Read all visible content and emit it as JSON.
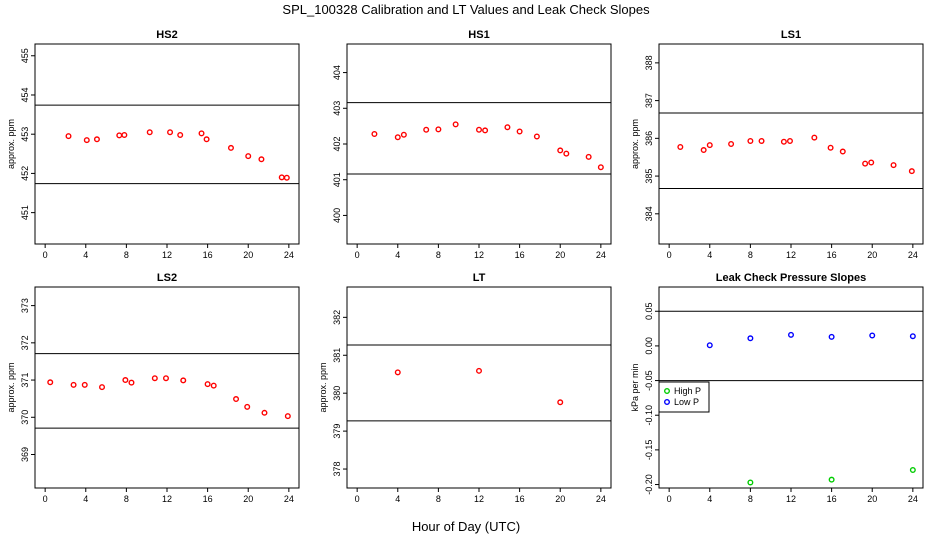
{
  "figure": {
    "title": "SPL_100328  Calibration and LT Values and Leak Check Slopes",
    "xlabel": "Hour of Day (UTC)"
  },
  "chart_data": [
    {
      "type": "scatter",
      "title": "HS2",
      "ylabel": "approx. ppm",
      "xlim": [
        -1,
        25
      ],
      "ylim": [
        450.2,
        455.3
      ],
      "xticks": [
        "0",
        "4",
        "8",
        "12",
        "16",
        "20",
        "24"
      ],
      "yticks": [
        "451",
        "452",
        "453",
        "454",
        "455"
      ],
      "hlines": [
        451.74,
        453.74
      ],
      "series": [
        {
          "color": "#ff0000",
          "x": [
            2.3,
            4.1,
            5.1,
            7.3,
            7.8,
            10.3,
            12.3,
            13.3,
            15.4,
            15.9,
            18.3,
            20.0,
            21.3,
            23.3,
            23.8
          ],
          "y": [
            452.95,
            452.85,
            452.87,
            452.97,
            452.98,
            453.05,
            453.05,
            452.98,
            453.02,
            452.87,
            452.65,
            452.44,
            452.36,
            451.9,
            451.89
          ]
        }
      ]
    },
    {
      "type": "scatter",
      "title": "HS1",
      "ylabel": "",
      "xlim": [
        -1,
        25
      ],
      "ylim": [
        399.2,
        404.8
      ],
      "xticks": [
        "0",
        "4",
        "8",
        "12",
        "16",
        "20",
        "24"
      ],
      "yticks": [
        "400",
        "401",
        "402",
        "403",
        "404"
      ],
      "hlines": [
        401.16,
        403.16
      ],
      "series": [
        {
          "color": "#ff0000",
          "x": [
            1.7,
            4.0,
            4.6,
            6.8,
            8.0,
            9.7,
            12.0,
            12.6,
            14.8,
            16.0,
            17.7,
            20.0,
            20.6,
            22.8,
            24.0
          ],
          "y": [
            402.28,
            402.19,
            402.26,
            402.4,
            402.41,
            402.55,
            402.4,
            402.38,
            402.47,
            402.35,
            402.21,
            401.82,
            401.73,
            401.64,
            401.35
          ]
        }
      ]
    },
    {
      "type": "scatter",
      "title": "LS1",
      "ylabel": "approx. ppm",
      "xlim": [
        -1,
        25
      ],
      "ylim": [
        383.2,
        388.5
      ],
      "xticks": [
        "0",
        "4",
        "8",
        "12",
        "16",
        "20",
        "24"
      ],
      "yticks": [
        "384",
        "385",
        "386",
        "387",
        "388"
      ],
      "hlines": [
        384.67,
        386.67
      ],
      "series": [
        {
          "color": "#ff0000",
          "x": [
            1.1,
            3.4,
            4.0,
            6.1,
            8.0,
            9.1,
            11.3,
            11.9,
            14.3,
            15.9,
            17.1,
            19.3,
            19.9,
            22.1,
            23.9
          ],
          "y": [
            385.77,
            385.69,
            385.82,
            385.85,
            385.93,
            385.93,
            385.91,
            385.93,
            386.02,
            385.75,
            385.65,
            385.33,
            385.36,
            385.29,
            385.13
          ]
        }
      ]
    },
    {
      "type": "scatter",
      "title": "LS2",
      "ylabel": "approx. ppm",
      "xlim": [
        -1,
        25
      ],
      "ylim": [
        368.1,
        373.5
      ],
      "xticks": [
        "0",
        "4",
        "8",
        "12",
        "16",
        "20",
        "24"
      ],
      "yticks": [
        "369",
        "370",
        "371",
        "372",
        "373"
      ],
      "hlines": [
        369.71,
        371.71
      ],
      "series": [
        {
          "color": "#ff0000",
          "x": [
            0.5,
            2.8,
            3.9,
            5.6,
            7.9,
            8.5,
            10.8,
            11.9,
            13.6,
            16.0,
            16.6,
            18.8,
            19.9,
            21.6,
            23.9
          ],
          "y": [
            370.94,
            370.87,
            370.87,
            370.81,
            371.0,
            370.93,
            371.05,
            371.05,
            370.99,
            370.89,
            370.85,
            370.49,
            370.28,
            370.12,
            370.03
          ]
        }
      ]
    },
    {
      "type": "scatter",
      "title": "LT",
      "ylabel": "approx. ppm",
      "xlim": [
        -1,
        25
      ],
      "ylim": [
        377.5,
        382.8
      ],
      "xticks": [
        "0",
        "4",
        "8",
        "12",
        "16",
        "20",
        "24"
      ],
      "yticks": [
        "378",
        "379",
        "380",
        "381",
        "382"
      ],
      "hlines": [
        379.27,
        381.27
      ],
      "series": [
        {
          "color": "#ff0000",
          "x": [
            4.0,
            12.0,
            20.0
          ],
          "y": [
            380.55,
            380.59,
            379.76
          ]
        }
      ]
    },
    {
      "type": "scatter",
      "title": "Leak Check Pressure Slopes",
      "ylabel": "kPa per min",
      "xlim": [
        -1,
        25
      ],
      "ylim": [
        -0.205,
        0.085
      ],
      "xticks": [
        "0",
        "4",
        "8",
        "12",
        "16",
        "20",
        "24"
      ],
      "yticks": [
        "-0.20",
        "-0.15",
        "-0.10",
        "-0.05",
        "0.00",
        "0.05"
      ],
      "hlines": [
        -0.05,
        0.05
      ],
      "legend": "left",
      "series": [
        {
          "name": "High P",
          "color": "#00cc00",
          "x": [
            8.0,
            16.0,
            24.0
          ],
          "y": [
            -0.197,
            -0.193,
            -0.179
          ]
        },
        {
          "name": "Low P",
          "color": "#0000ff",
          "x": [
            4.0,
            8.0,
            12.0,
            16.0,
            20.0,
            24.0
          ],
          "y": [
            0.001,
            0.011,
            0.016,
            0.013,
            0.015,
            0.014
          ]
        }
      ]
    }
  ]
}
